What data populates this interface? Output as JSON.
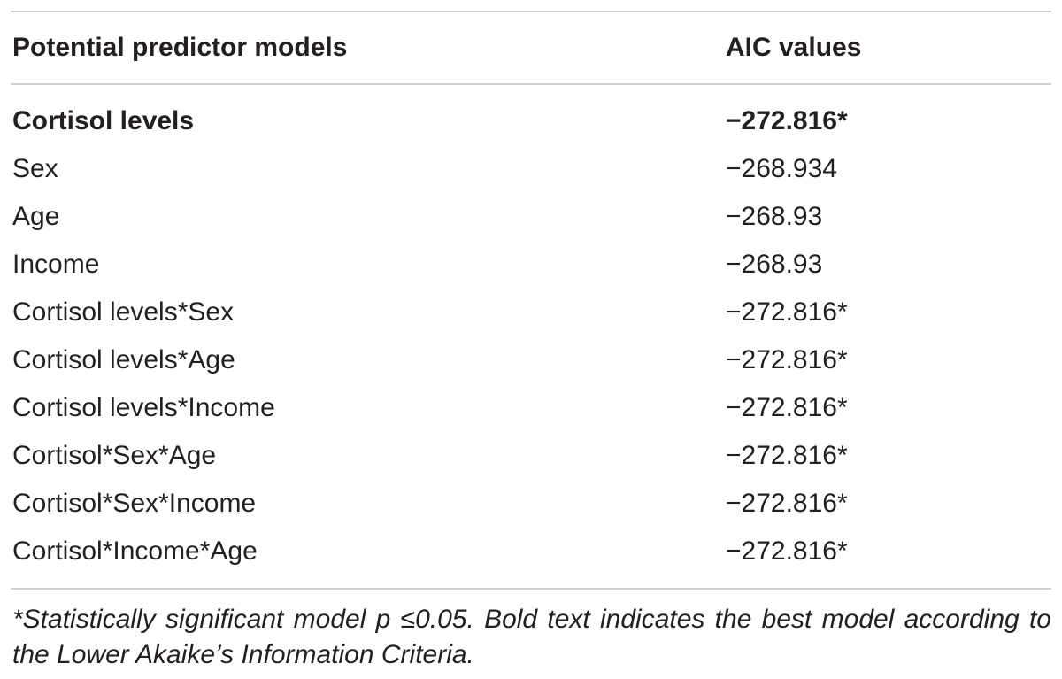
{
  "table": {
    "headers": {
      "model": "Potential predictor models",
      "aic": "AIC values"
    },
    "rows": [
      {
        "model": "Cortisol levels",
        "aic": "−272.816*",
        "best": true
      },
      {
        "model": "Sex",
        "aic": "−268.934",
        "best": false
      },
      {
        "model": "Age",
        "aic": "−268.93",
        "best": false
      },
      {
        "model": "Income",
        "aic": "−268.93",
        "best": false
      },
      {
        "model": "Cortisol levels*Sex",
        "aic": "−272.816*",
        "best": false
      },
      {
        "model": "Cortisol levels*Age",
        "aic": "−272.816*",
        "best": false
      },
      {
        "model": "Cortisol levels*Income",
        "aic": "−272.816*",
        "best": false
      },
      {
        "model": "Cortisol*Sex*Age",
        "aic": "−272.816*",
        "best": false
      },
      {
        "model": "Cortisol*Sex*Income",
        "aic": "−272.816*",
        "best": false
      },
      {
        "model": "Cortisol*Income*Age",
        "aic": "−272.816*",
        "best": false
      }
    ],
    "footnote": "*Statistically significant model p ≤0.05. Bold text indicates the best model according to the Lower Akaike’s Information Criteria."
  },
  "colors": {
    "text": "#231f20",
    "rule": "#cfcfcf"
  }
}
